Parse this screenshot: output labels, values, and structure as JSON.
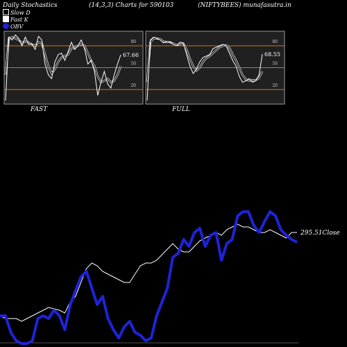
{
  "header": {
    "title": "Daily Stochastics",
    "params": "(14,3,3) Charts for 590103",
    "symbol": "(NIFTYBEES) munafasutra.in"
  },
  "legend": [
    {
      "label": "Slow  D",
      "color": "#000000"
    },
    {
      "label": "Fast K",
      "color": "#ffffff"
    },
    {
      "label": "OBV",
      "color": "#1e24d6"
    }
  ],
  "colors": {
    "background": "#000000",
    "panel": "#202020",
    "level_line": "#c8781e",
    "obv": "#1e24d6",
    "close": "#ffffff",
    "stoch": "#ffffff"
  },
  "chart_data": [
    {
      "type": "line",
      "label": "FAST",
      "ylim": [
        0,
        100
      ],
      "yticks": [
        80,
        50,
        20
      ],
      "last_value": "67.66",
      "series": [
        {
          "name": "Fast K",
          "values": [
            5,
            92,
            88,
            95,
            90,
            80,
            92,
            82,
            83,
            75,
            93,
            88,
            55,
            40,
            35,
            58,
            68,
            70,
            60,
            72,
            85,
            75,
            80,
            88,
            76,
            55,
            60,
            45,
            12,
            30,
            45,
            28,
            22,
            40,
            55,
            67.66
          ]
        },
        {
          "name": "Slow  D",
          "values": [
            40,
            90,
            92,
            90,
            88,
            84,
            86,
            85,
            82,
            80,
            85,
            84,
            68,
            52,
            42,
            48,
            58,
            64,
            66,
            68,
            76,
            78,
            80,
            82,
            80,
            70,
            60,
            52,
            38,
            30,
            32,
            35,
            30,
            32,
            40,
            52
          ]
        }
      ]
    },
    {
      "type": "line",
      "label": "FULL",
      "ylim": [
        0,
        100
      ],
      "yticks": [
        80,
        50,
        20
      ],
      "last_value": "68.55",
      "series": [
        {
          "name": "Fast K",
          "values": [
            5,
            88,
            92,
            90,
            88,
            84,
            86,
            85,
            82,
            80,
            85,
            84,
            68,
            52,
            42,
            48,
            58,
            64,
            66,
            68,
            76,
            78,
            80,
            82,
            80,
            70,
            60,
            52,
            38,
            30,
            32,
            35,
            30,
            32,
            40,
            68.55
          ]
        },
        {
          "name": "Slow  D",
          "values": [
            30,
            85,
            90,
            90,
            89,
            86,
            85,
            85,
            83,
            81,
            82,
            83,
            75,
            62,
            52,
            46,
            50,
            58,
            63,
            66,
            70,
            74,
            78,
            80,
            81,
            77,
            68,
            60,
            50,
            40,
            34,
            32,
            33,
            33,
            36,
            45
          ]
        }
      ]
    },
    {
      "type": "line",
      "close_label": "295.51Close",
      "series": [
        {
          "name": "OBV",
          "values": [
            20,
            20,
            8,
            2,
            0,
            0,
            2,
            18,
            20,
            18,
            24,
            20,
            10,
            28,
            38,
            48,
            52,
            40,
            28,
            34,
            18,
            10,
            4,
            12,
            16,
            8,
            6,
            2,
            4,
            20,
            30,
            40,
            62,
            65,
            75,
            70,
            80,
            83,
            70,
            78,
            80,
            60,
            72,
            75,
            92,
            95,
            95,
            85,
            80,
            88,
            95,
            92,
            82,
            78,
            75,
            73
          ]
        },
        {
          "name": "Close",
          "values": [
            20,
            18,
            18,
            18,
            16,
            18,
            20,
            22,
            24,
            26,
            25,
            24,
            22,
            30,
            34,
            44,
            54,
            58,
            56,
            52,
            50,
            48,
            46,
            44,
            44,
            50,
            56,
            58,
            58,
            60,
            64,
            68,
            72,
            68,
            66,
            66,
            70,
            74,
            76,
            78,
            80,
            78,
            82,
            84,
            86,
            84,
            84,
            82,
            80,
            80,
            82,
            80,
            78,
            76,
            80,
            80
          ]
        }
      ]
    }
  ]
}
